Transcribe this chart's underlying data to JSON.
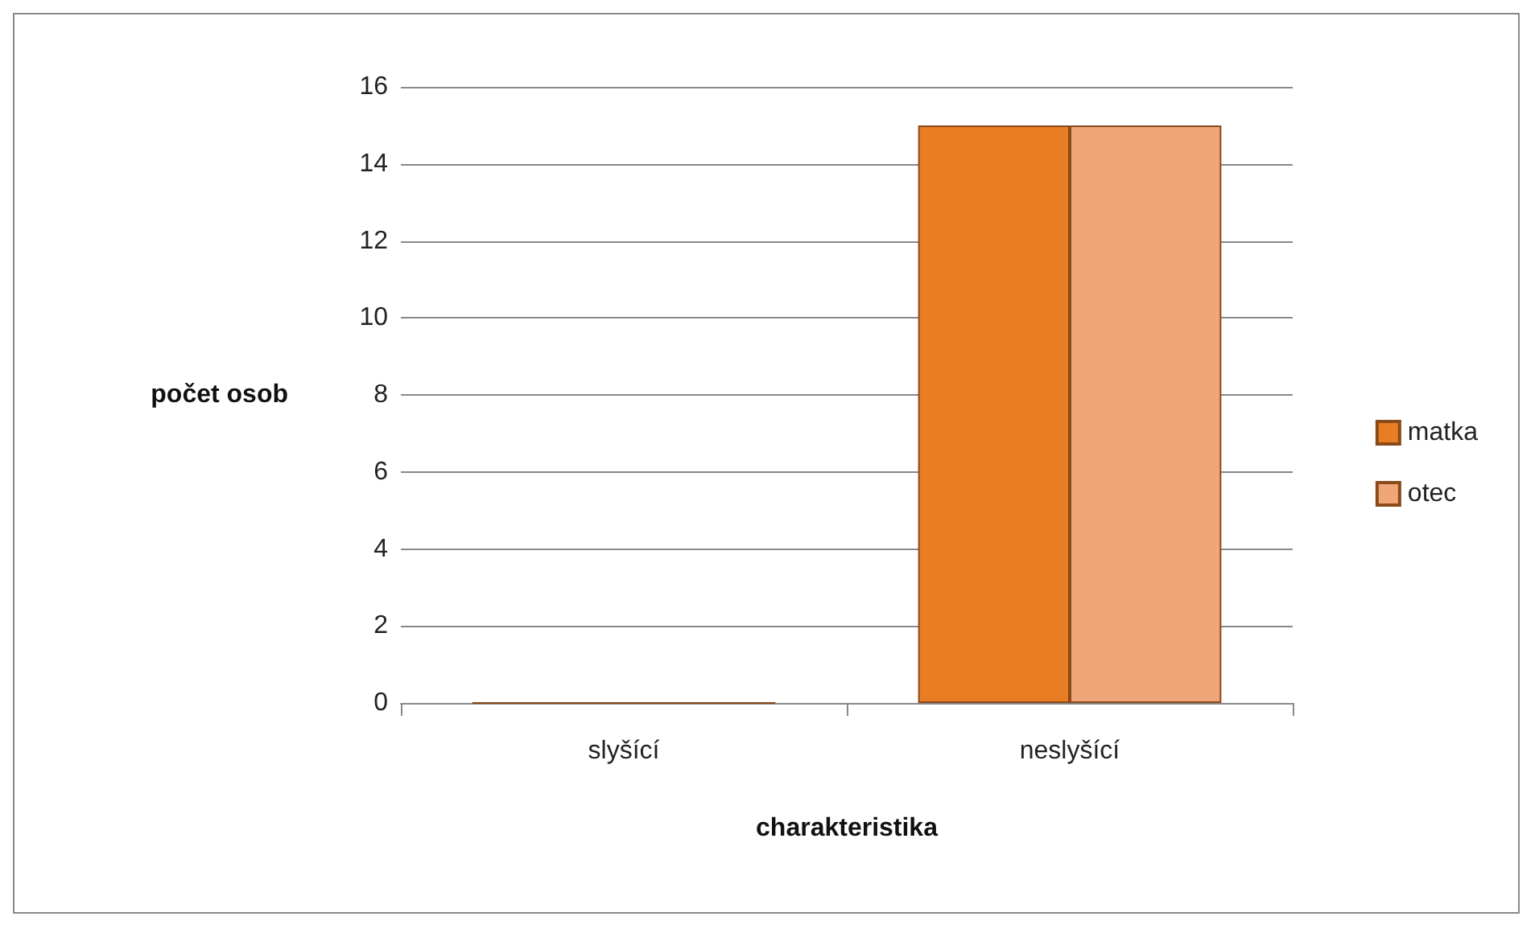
{
  "chart_data": {
    "type": "bar",
    "xlabel": "charakteristika",
    "ylabel": "počet osob",
    "categories": [
      "slyšící",
      "neslyšící"
    ],
    "series": [
      {
        "name": "matka",
        "color": "#e87d24",
        "values": [
          0,
          15
        ]
      },
      {
        "name": "otec",
        "color": "#f0a678",
        "values": [
          0,
          15
        ]
      }
    ],
    "ylim": [
      0,
      16
    ],
    "yticks": [
      0,
      2,
      4,
      6,
      8,
      10,
      12,
      14,
      16
    ],
    "grid": "y",
    "legend": "right"
  }
}
